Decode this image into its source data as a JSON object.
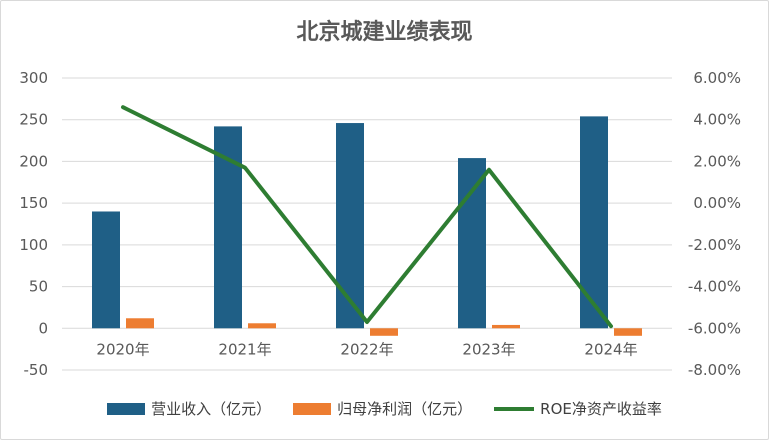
{
  "chart_data": {
    "type": "bar",
    "title": "北京城建业绩表现",
    "categories": [
      "2020年",
      "2021年",
      "2022年",
      "2023年",
      "2024年"
    ],
    "series": [
      {
        "name": "营业收入（亿元）",
        "type": "bar",
        "axis": "left",
        "color": "#1f5f86",
        "values": [
          140,
          242,
          246,
          204,
          254
        ]
      },
      {
        "name": "归母净利润（亿元）",
        "type": "bar",
        "axis": "left",
        "color": "#ed7d31",
        "values": [
          12,
          6,
          -9,
          4,
          -9
        ]
      },
      {
        "name": "ROE净资产收益率",
        "type": "line",
        "axis": "right",
        "color": "#2e7d32",
        "values": [
          4.6,
          1.7,
          -5.7,
          1.6,
          -5.9
        ]
      }
    ],
    "y_left": {
      "min": -50,
      "max": 300,
      "step": 50,
      "ticks": [
        "-50",
        "0",
        "50",
        "100",
        "150",
        "200",
        "250",
        "300"
      ]
    },
    "y_right": {
      "min": -8,
      "max": 6,
      "step": 2,
      "ticks": [
        "-8.00%",
        "-6.00%",
        "-4.00%",
        "-2.00%",
        "0.00%",
        "2.00%",
        "4.00%",
        "6.00%"
      ]
    },
    "grid": true,
    "legend_position": "bottom"
  }
}
